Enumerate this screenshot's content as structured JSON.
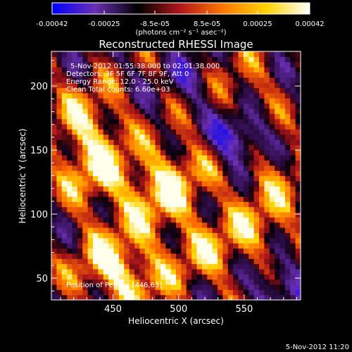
{
  "chart_data": {
    "type": "heatmap",
    "title": "Reconstructed RHESSI Image",
    "xlabel": "Heliocentric X (arcsec)",
    "ylabel": "Heliocentric Y (arcsec)",
    "xlim": [
      403,
      593
    ],
    "ylim": [
      33,
      227
    ],
    "x_ticks": [
      {
        "value": 450,
        "label": "450"
      },
      {
        "value": 500,
        "label": "500"
      },
      {
        "value": 550,
        "label": "550"
      }
    ],
    "y_ticks": [
      {
        "value": 50,
        "label": "50"
      },
      {
        "value": 100,
        "label": "100"
      },
      {
        "value": 150,
        "label": "150"
      },
      {
        "value": 200,
        "label": "200"
      }
    ],
    "colorbar": {
      "range": [
        -0.00042,
        0.00042
      ],
      "ticks": [
        {
          "value": -0.00042,
          "label": "-0.00042"
        },
        {
          "value": -0.00025,
          "label": "-0.00025"
        },
        {
          "value": -8.5e-05,
          "label": "-8.5e-05"
        },
        {
          "value": 8.5e-05,
          "label": "8.5e-05"
        },
        {
          "value": 0.00025,
          "label": "0.00025"
        },
        {
          "value": 0.00042,
          "label": "0.00042"
        }
      ],
      "units_label": "(photons cm⁻² s⁻¹ asec⁻²)",
      "colors": [
        "#0000ff",
        "#6a2fb5",
        "#000000",
        "#b4161a",
        "#ff7a00",
        "#ffd400",
        "#ffffff"
      ]
    },
    "annotations": [
      "5-Nov-2012 01:55:38.000 to 02:01:38.000",
      "Detectors: 3F 5F 6F 7F 8F 9F, Att 0",
      "Energy Range: 12.0 - 25.0 keV",
      "Clean      Total counts: 6.60e+03"
    ],
    "peak_label": "Position of Peak = [446,63]",
    "peak": {
      "x": 446,
      "y": 63
    },
    "hot_regions": [
      {
        "x": 436,
        "y": 135,
        "level": 1.0
      },
      {
        "x": 446,
        "y": 63,
        "level": 1.0
      },
      {
        "x": 430,
        "y": 175,
        "level": 0.85
      },
      {
        "x": 480,
        "y": 110,
        "level": 0.8
      },
      {
        "x": 500,
        "y": 135,
        "level": 0.75
      },
      {
        "x": 520,
        "y": 70,
        "level": 0.75
      },
      {
        "x": 560,
        "y": 90,
        "level": 0.7
      },
      {
        "x": 545,
        "y": 200,
        "level": 0.6
      },
      {
        "x": 575,
        "y": 130,
        "level": 0.55
      },
      {
        "x": 470,
        "y": 45,
        "level": 0.6
      }
    ],
    "cold_regions": [
      {
        "x": 545,
        "y": 160,
        "level": -0.8
      },
      {
        "x": 575,
        "y": 45,
        "level": -0.5
      },
      {
        "x": 515,
        "y": 205,
        "level": -0.4
      }
    ]
  },
  "footer": {
    "timestamp": "5-Nov-2012 11:20"
  }
}
